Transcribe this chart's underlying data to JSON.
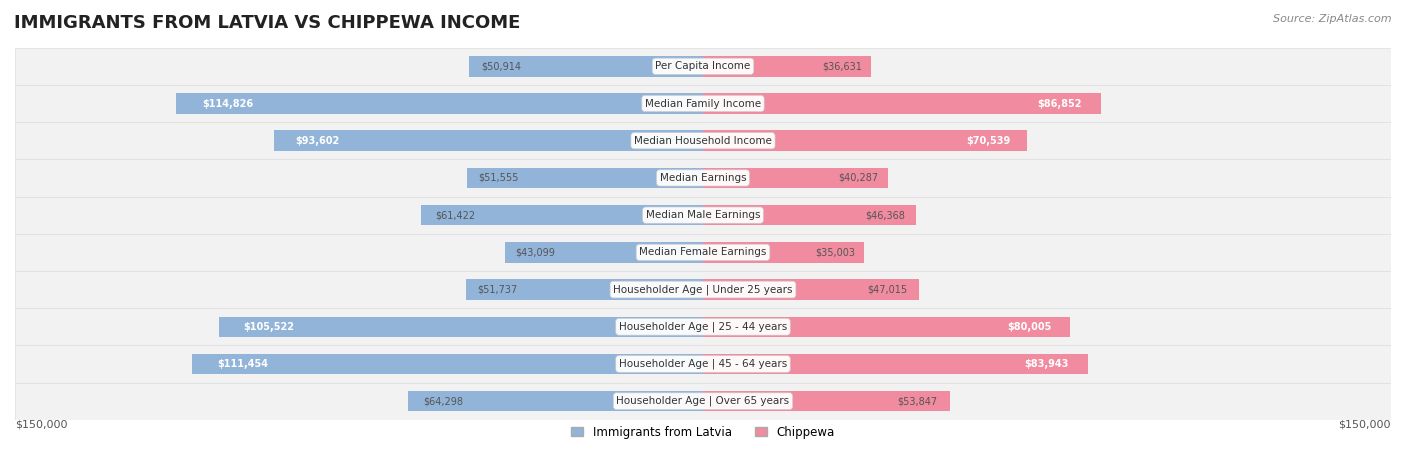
{
  "title": "IMMIGRANTS FROM LATVIA VS CHIPPEWA INCOME",
  "source": "Source: ZipAtlas.com",
  "categories": [
    "Per Capita Income",
    "Median Family Income",
    "Median Household Income",
    "Median Earnings",
    "Median Male Earnings",
    "Median Female Earnings",
    "Householder Age | Under 25 years",
    "Householder Age | 25 - 44 years",
    "Householder Age | 45 - 64 years",
    "Householder Age | Over 65 years"
  ],
  "latvia_values": [
    50914,
    114826,
    93602,
    51555,
    61422,
    43099,
    51737,
    105522,
    111454,
    64298
  ],
  "chippewa_values": [
    36631,
    86852,
    70539,
    40287,
    46368,
    35003,
    47015,
    80005,
    83943,
    53847
  ],
  "latvia_labels": [
    "$50,914",
    "$114,826",
    "$93,602",
    "$51,555",
    "$61,422",
    "$43,099",
    "$51,737",
    "$105,522",
    "$111,454",
    "$64,298"
  ],
  "chippewa_labels": [
    "$36,631",
    "$86,852",
    "$70,539",
    "$40,287",
    "$46,368",
    "$35,003",
    "$47,015",
    "$80,005",
    "$83,943",
    "$53,847"
  ],
  "max_value": 150000,
  "latvia_color": "#92b4d9",
  "chippewa_color": "#f08ba0",
  "latvia_color_dark": "#6897c8",
  "chippewa_color_dark": "#e8607a",
  "bg_color": "#f5f5f5",
  "row_bg_color": "#eeeeee",
  "bar_height": 0.55,
  "legend_latvia": "Immigrants from Latvia",
  "legend_chippewa": "Chippewa",
  "x_label_left": "$150,000",
  "x_label_right": "$150,000"
}
